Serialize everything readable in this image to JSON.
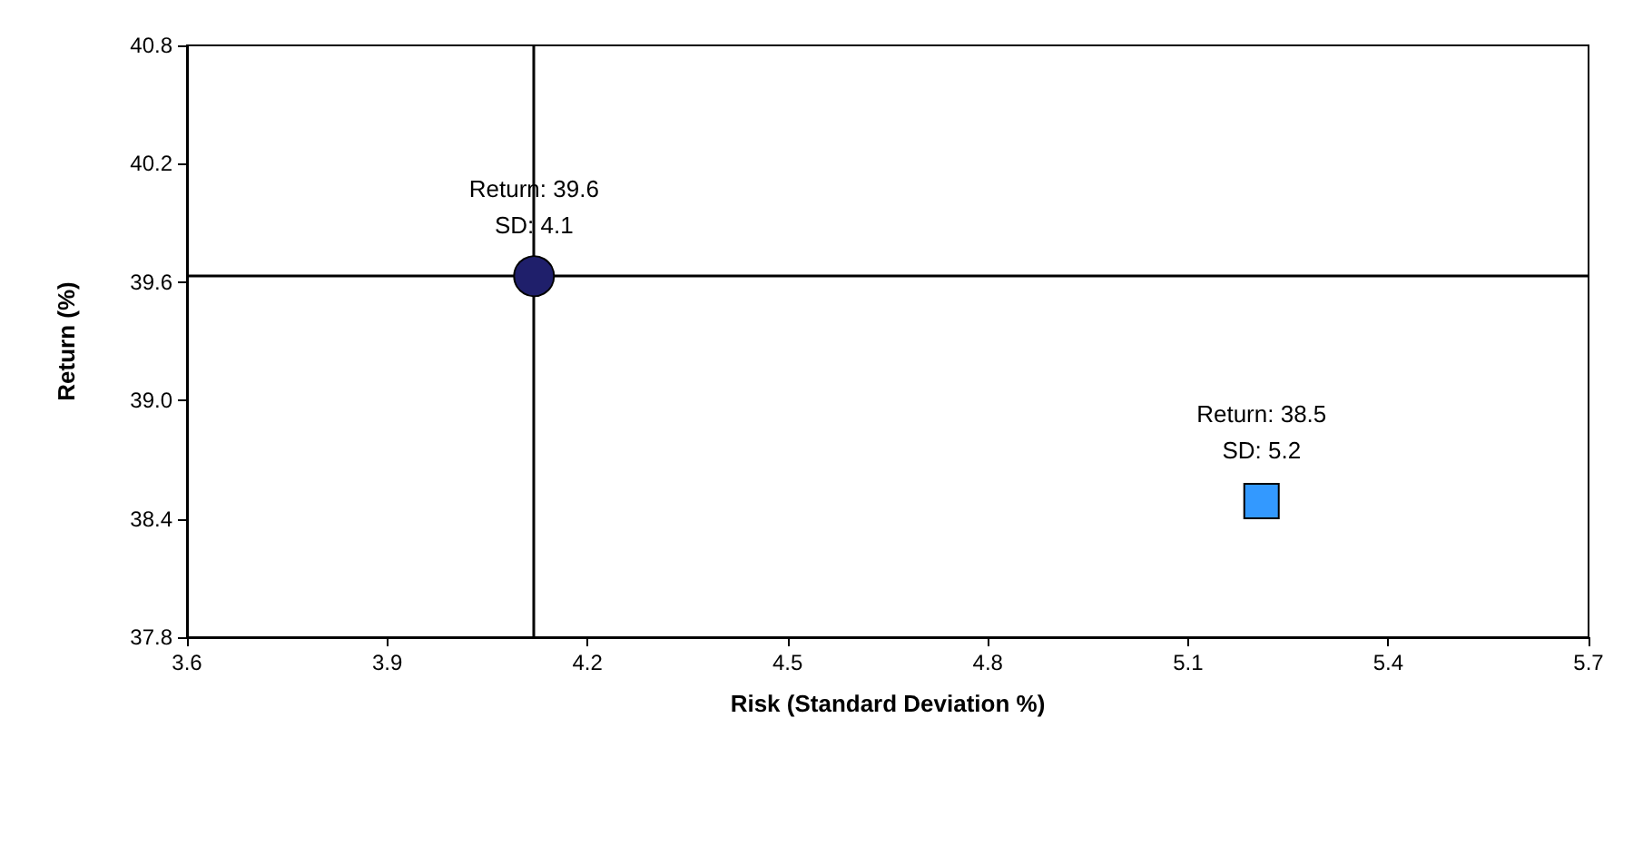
{
  "chart_data": {
    "type": "scatter",
    "xlabel": "Risk (Standard Deviation %)",
    "ylabel": "Return (%)",
    "xlim": [
      3.6,
      5.7
    ],
    "xticks": [
      {
        "value": 3.6,
        "label": "3.6"
      },
      {
        "value": 3.9,
        "label": "3.9"
      },
      {
        "value": 4.2,
        "label": "4.2"
      },
      {
        "value": 4.5,
        "label": "4.5"
      },
      {
        "value": 4.8,
        "label": "4.8"
      },
      {
        "value": 5.1,
        "label": "5.1"
      },
      {
        "value": 5.4,
        "label": "5.4"
      },
      {
        "value": 5.7,
        "label": "5.7"
      }
    ],
    "ylim": [
      37.8,
      40.8
    ],
    "yticks": [
      {
        "value": 37.8,
        "label": "37.8"
      },
      {
        "value": 38.4,
        "label": "38.4"
      },
      {
        "value": 39.0,
        "label": "39.0"
      },
      {
        "value": 39.6,
        "label": "39.6"
      },
      {
        "value": 40.2,
        "label": "40.2"
      },
      {
        "value": 40.8,
        "label": "40.8"
      }
    ],
    "series": [
      {
        "color": "#3399ff",
        "marker": "square",
        "x": [
          5.21
        ],
        "values": [
          38.49
        ]
      },
      {
        "color": "#1f1f6b",
        "marker": "circle",
        "x": [
          4.12
        ],
        "values": [
          39.63
        ]
      }
    ],
    "ref_lines": [
      {
        "axis": "x",
        "value": 4.12,
        "color": "#000000"
      },
      {
        "axis": "y",
        "value": 39.63,
        "color": "#000000"
      }
    ],
    "annotations": [
      {
        "text": "Return: 39.6\nSD: 4.1",
        "x": 4.12,
        "y": 39.63
      },
      {
        "text": "Return: 38.5\nSD: 5.2",
        "x": 5.21,
        "y": 38.49
      }
    ],
    "grid": false
  }
}
